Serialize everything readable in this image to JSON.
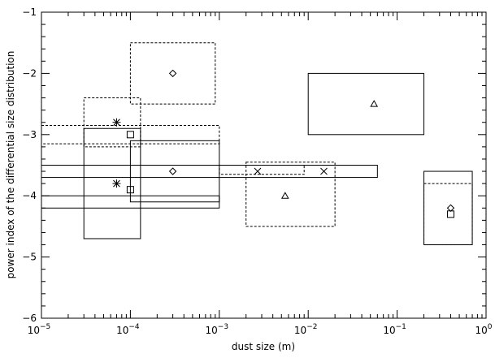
{
  "chart_data": {
    "type": "scatter",
    "xlabel": "dust size (m)",
    "ylabel": "power index of the differential size distribution",
    "xscale": "log",
    "xlim": [
      1e-05,
      1
    ],
    "ylim": [
      -6,
      -1
    ],
    "x_ticks": [
      {
        "value": 1e-05,
        "base": "10",
        "exp": "−5"
      },
      {
        "value": 0.0001,
        "base": "10",
        "exp": "−4"
      },
      {
        "value": 0.001,
        "base": "10",
        "exp": "−3"
      },
      {
        "value": 0.01,
        "base": "10",
        "exp": "−2"
      },
      {
        "value": 0.1,
        "base": "10",
        "exp": "−1"
      },
      {
        "value": 1,
        "base": "10",
        "exp": "0"
      }
    ],
    "y_ticks": [
      {
        "value": -1,
        "label": "−1"
      },
      {
        "value": -2,
        "label": "−2"
      },
      {
        "value": -3,
        "label": "−3"
      },
      {
        "value": -4,
        "label": "−4"
      },
      {
        "value": -5,
        "label": "−5"
      },
      {
        "value": -6,
        "label": "−6"
      }
    ],
    "ranges": [
      {
        "x": [
          0.0001,
          0.0009
        ],
        "y": [
          -2.5,
          -1.5
        ],
        "style": "dashed"
      },
      {
        "x": [
          3e-05,
          0.00013
        ],
        "y": [
          -3.2,
          -2.4
        ],
        "style": "dashed"
      },
      {
        "x": [
          1e-05,
          0.001
        ],
        "y": [
          -3.15,
          -2.85
        ],
        "style": "dashed"
      },
      {
        "x": [
          3e-05,
          0.00013
        ],
        "y": [
          -4.7,
          -2.9
        ],
        "style": "solid"
      },
      {
        "x": [
          0.0001,
          0.001
        ],
        "y": [
          -4.1,
          -3.1
        ],
        "style": "solid"
      },
      {
        "x": [
          1e-05,
          0.001
        ],
        "y": [
          -4.2,
          -4.0
        ],
        "style": "solid"
      },
      {
        "x": [
          1e-05,
          0.06
        ],
        "y": [
          -3.7,
          -3.5
        ],
        "style": "solid"
      },
      {
        "x": [
          0.001,
          0.009
        ],
        "y": [
          -3.65,
          -3.5
        ],
        "style": "dashed"
      },
      {
        "x": [
          0.002,
          0.02
        ],
        "y": [
          -4.5,
          -3.45
        ],
        "style": "dashed"
      },
      {
        "x": [
          0.01,
          0.2
        ],
        "y": [
          -3.0,
          -2.0
        ],
        "style": "solid"
      },
      {
        "x": [
          0.2,
          0.7
        ],
        "y": [
          -4.8,
          -3.6
        ],
        "style": "solid"
      },
      {
        "x": [
          0.2,
          0.7
        ],
        "y": [
          -4.8,
          -3.8
        ],
        "style": "dashed"
      }
    ],
    "points": [
      {
        "x": 0.0003,
        "y": -2.0,
        "marker": "diamond"
      },
      {
        "x": 7e-05,
        "y": -2.8,
        "marker": "asterisk"
      },
      {
        "x": 0.0001,
        "y": -3.0,
        "marker": "square"
      },
      {
        "x": 0.0003,
        "y": -3.6,
        "marker": "diamond"
      },
      {
        "x": 7e-05,
        "y": -3.8,
        "marker": "asterisk"
      },
      {
        "x": 0.0001,
        "y": -3.9,
        "marker": "square"
      },
      {
        "x": 0.0027,
        "y": -3.6,
        "marker": "cross"
      },
      {
        "x": 0.015,
        "y": -3.6,
        "marker": "cross"
      },
      {
        "x": 0.0055,
        "y": -4.0,
        "marker": "triangle"
      },
      {
        "x": 0.055,
        "y": -2.5,
        "marker": "triangle"
      },
      {
        "x": 0.4,
        "y": -4.2,
        "marker": "diamond"
      },
      {
        "x": 0.4,
        "y": -4.3,
        "marker": "square"
      }
    ]
  }
}
